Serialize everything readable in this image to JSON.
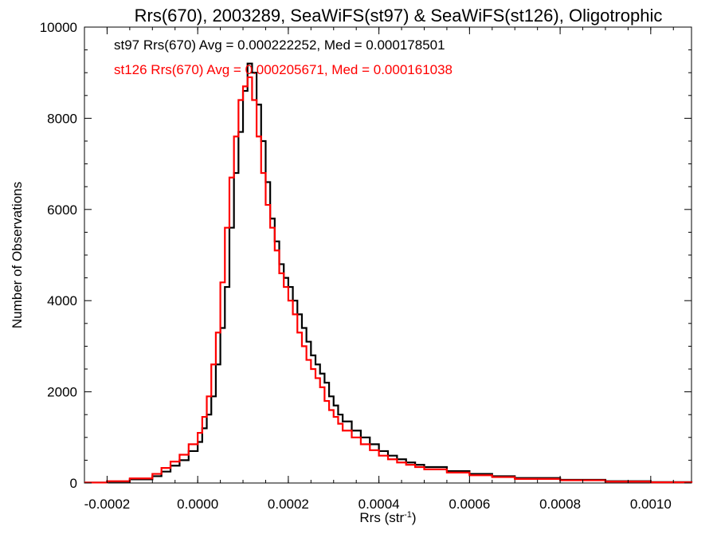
{
  "chart_data": {
    "type": "line",
    "style": "step-histogram",
    "title": "Rrs(670), 2003289, SeaWiFS(st97) & SeaWiFS(st126), Oligotrophic",
    "xlabel_main": "Rrs (str",
    "xlabel_sup": "-1",
    "xlabel_close": ")",
    "ylabel": "Number of Observations",
    "xlim": [
      -0.00025,
      0.00109
    ],
    "ylim": [
      0,
      10000
    ],
    "grid": false,
    "xticks": [
      -0.0002,
      0.0,
      0.0002,
      0.0004,
      0.0006,
      0.0008,
      0.001
    ],
    "xtick_labels": [
      "-0.0002",
      "0.0000",
      "0.0002",
      "0.0004",
      "0.0006",
      "0.0008",
      "0.0010"
    ],
    "yticks": [
      0,
      2000,
      4000,
      6000,
      8000,
      10000
    ],
    "ytick_labels": [
      "0",
      "2000",
      "4000",
      "6000",
      "8000",
      "10000"
    ],
    "annotations": [
      {
        "text": "st97 Rrs(670) Avg = 0.000222252, Med = 0.000178501",
        "color": "#000000"
      },
      {
        "text": "st126 Rrs(670) Avg = 0.000205671, Med = 0.000161038",
        "color": "#ff0000"
      }
    ],
    "series": [
      {
        "color": "#000000",
        "x": [
          -0.00025,
          -0.0002,
          -0.00015,
          -0.0001,
          -8e-05,
          -6e-05,
          -4e-05,
          -2e-05,
          0.0,
          1e-05,
          2e-05,
          3e-05,
          4e-05,
          5e-05,
          6e-05,
          7e-05,
          8e-05,
          9e-05,
          0.0001,
          0.00011,
          0.00012,
          0.00013,
          0.00014,
          0.00015,
          0.00016,
          0.00017,
          0.00018,
          0.00019,
          0.0002,
          0.00021,
          0.00022,
          0.00023,
          0.00024,
          0.00025,
          0.00026,
          0.00027,
          0.00028,
          0.00029,
          0.0003,
          0.00031,
          0.00032,
          0.00034,
          0.00036,
          0.00038,
          0.0004,
          0.00042,
          0.00044,
          0.00046,
          0.00048,
          0.0005,
          0.00055,
          0.0006,
          0.00065,
          0.0007,
          0.0008,
          0.0009,
          0.001,
          0.00109
        ],
        "y": [
          10,
          30,
          80,
          150,
          250,
          380,
          500,
          700,
          900,
          1200,
          1500,
          1900,
          2600,
          3400,
          4300,
          5600,
          6800,
          7700,
          8600,
          9200,
          9000,
          8300,
          7500,
          6600,
          5800,
          5300,
          4800,
          4500,
          4300,
          4000,
          3700,
          3400,
          3100,
          2800,
          2600,
          2400,
          2200,
          1900,
          1700,
          1500,
          1350,
          1150,
          1000,
          850,
          700,
          600,
          520,
          450,
          400,
          350,
          260,
          200,
          150,
          110,
          70,
          40,
          20,
          10
        ]
      },
      {
        "color": "#ff0000",
        "x": [
          -0.00025,
          -0.0002,
          -0.00015,
          -0.0001,
          -8e-05,
          -6e-05,
          -4e-05,
          -2e-05,
          0.0,
          1e-05,
          2e-05,
          3e-05,
          4e-05,
          5e-05,
          6e-05,
          7e-05,
          8e-05,
          9e-05,
          0.0001,
          0.00011,
          0.00012,
          0.00013,
          0.00014,
          0.00015,
          0.00016,
          0.00017,
          0.00018,
          0.00019,
          0.0002,
          0.00021,
          0.00022,
          0.00023,
          0.00024,
          0.00025,
          0.00026,
          0.00027,
          0.00028,
          0.00029,
          0.0003,
          0.00031,
          0.00032,
          0.00034,
          0.00036,
          0.00038,
          0.0004,
          0.00042,
          0.00044,
          0.00046,
          0.00048,
          0.0005,
          0.00055,
          0.0006,
          0.00065,
          0.0007,
          0.0008,
          0.0009,
          0.001,
          0.00109
        ],
        "y": [
          10,
          40,
          100,
          200,
          330,
          470,
          620,
          850,
          1100,
          1450,
          1900,
          2600,
          3300,
          4400,
          5600,
          6700,
          7600,
          8400,
          8700,
          8900,
          8400,
          7600,
          6800,
          6100,
          5600,
          5100,
          4600,
          4300,
          4000,
          3700,
          3300,
          3000,
          2700,
          2500,
          2300,
          2100,
          1800,
          1600,
          1450,
          1300,
          1150,
          1000,
          850,
          720,
          600,
          520,
          450,
          400,
          350,
          300,
          230,
          170,
          130,
          90,
          60,
          30,
          15,
          5
        ]
      }
    ]
  }
}
